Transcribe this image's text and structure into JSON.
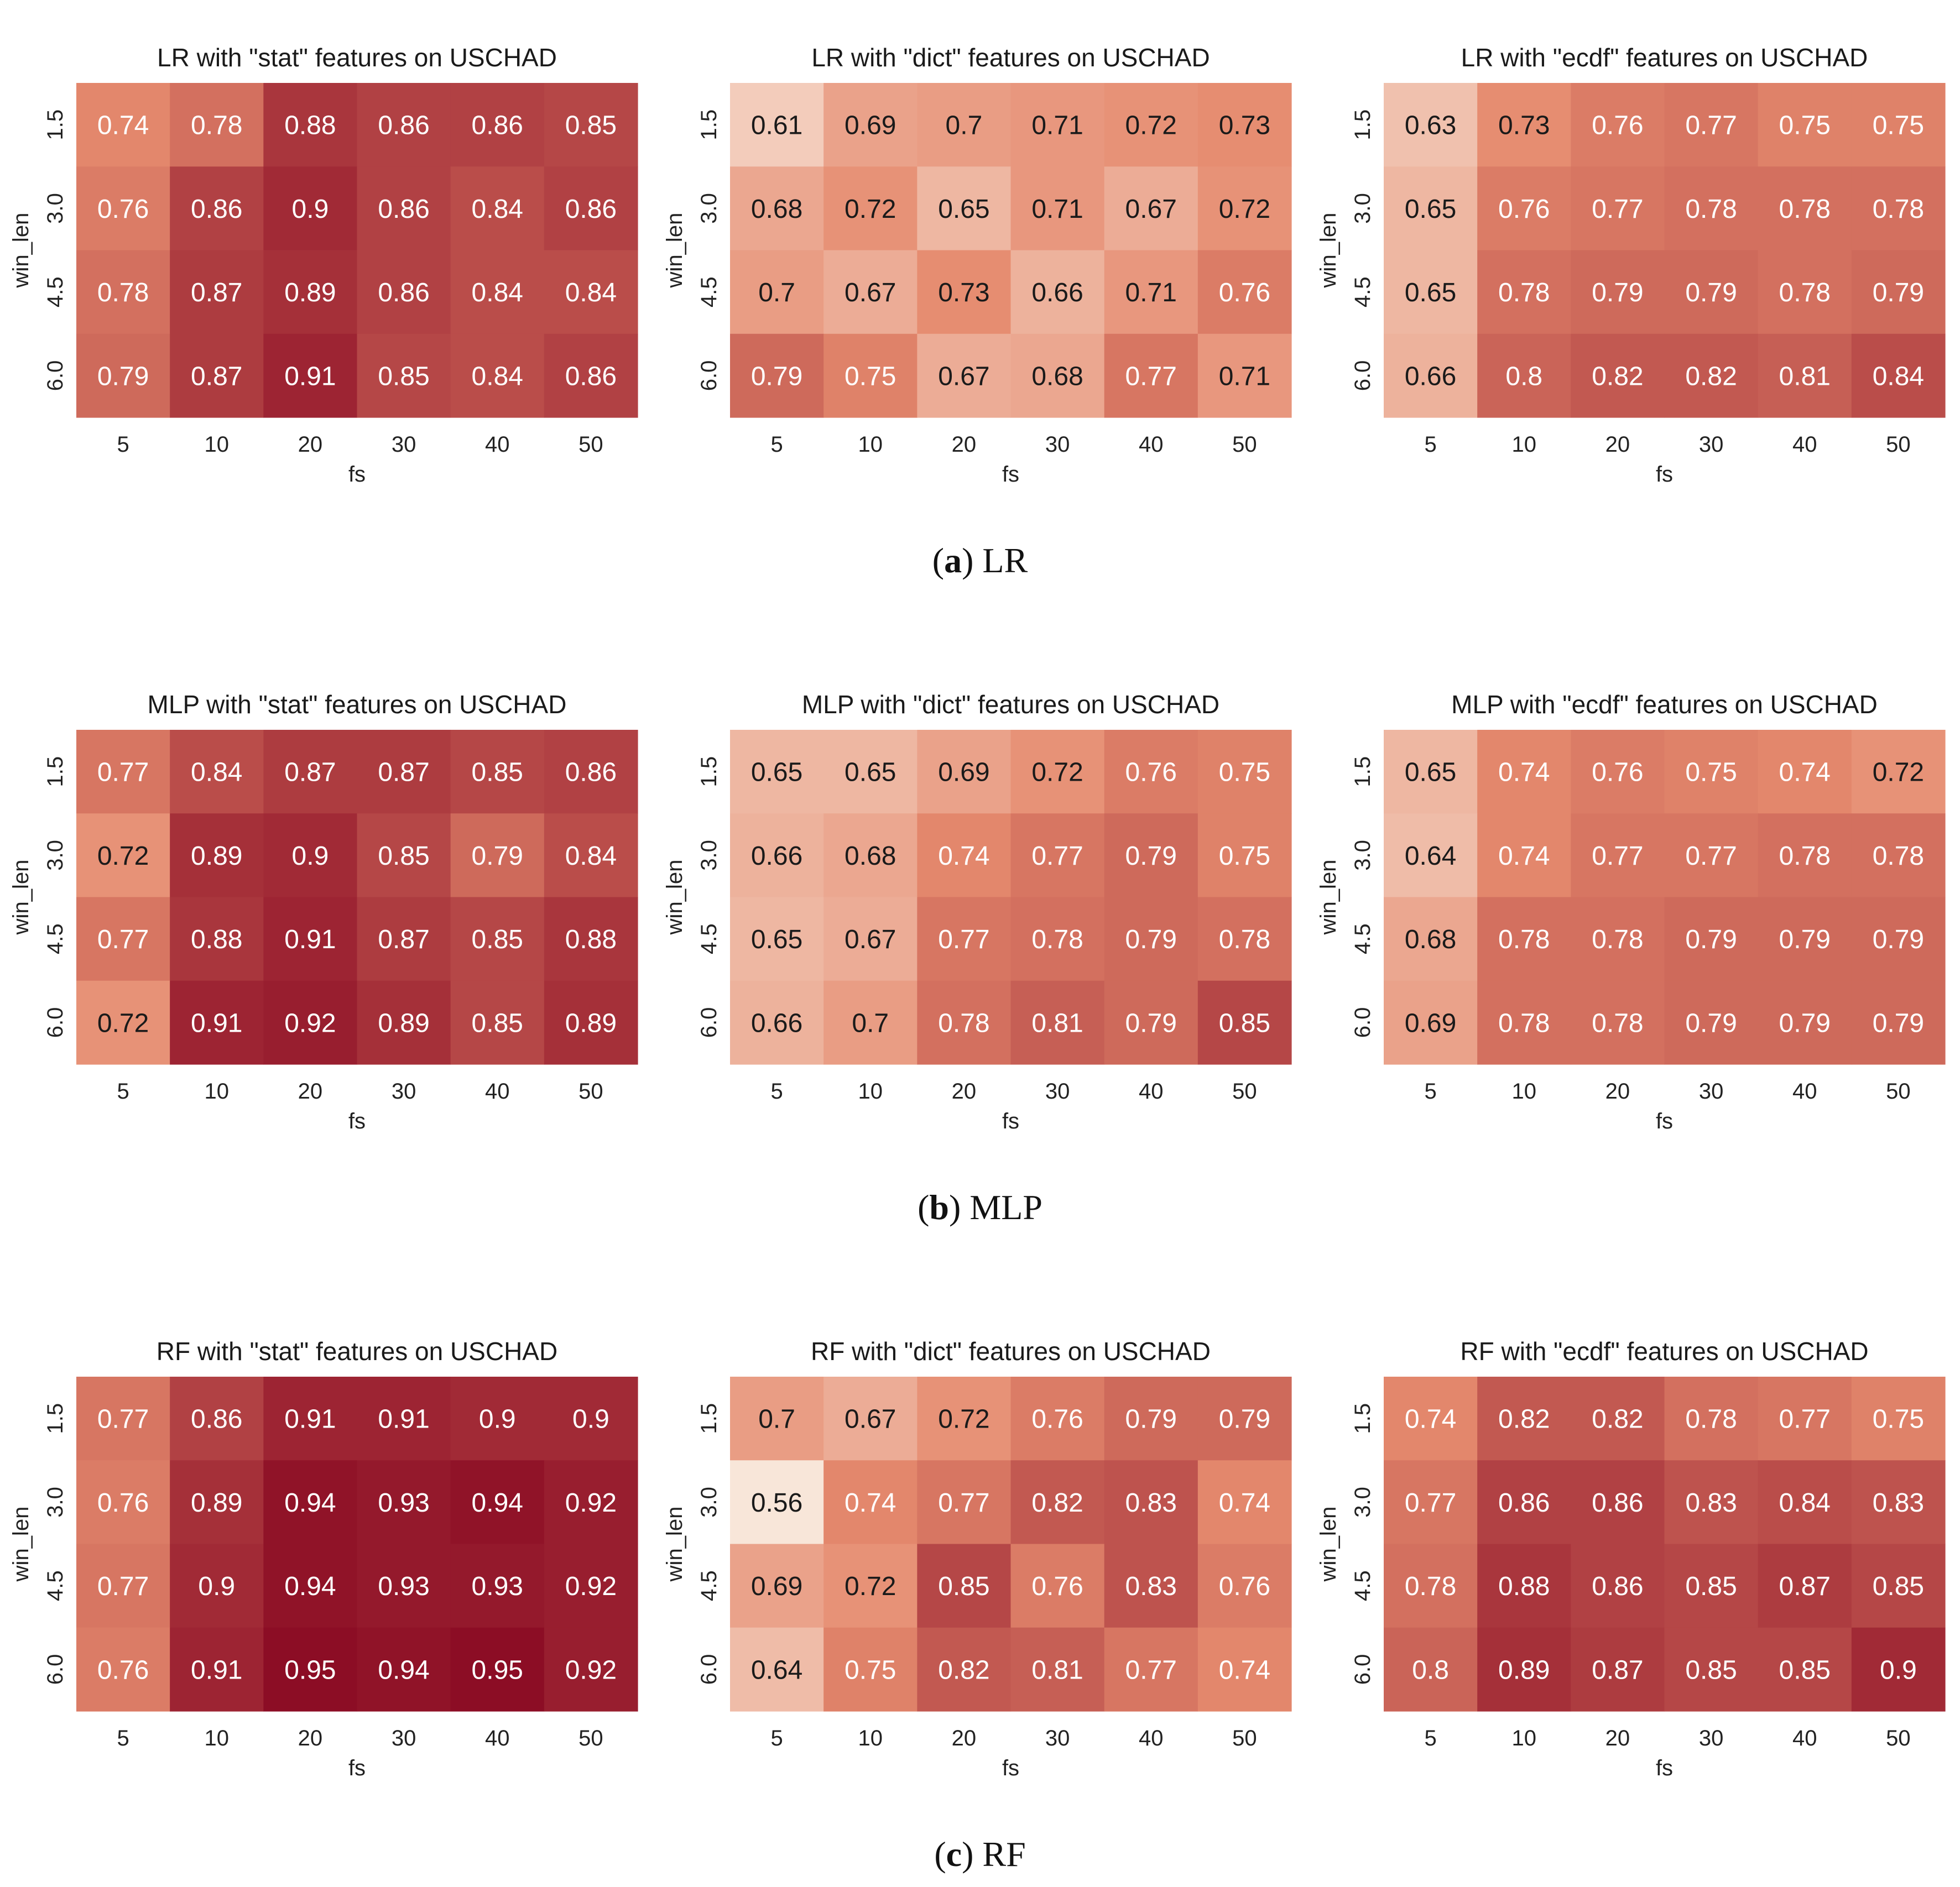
{
  "color_scale": {
    "min_value": 0.56,
    "max_value": 0.95,
    "low_color": "#f8e6d9",
    "mid_color": "#e58a6e",
    "high_color": "#8c0d25"
  },
  "captions": [
    {
      "letter": "a",
      "label": "LR"
    },
    {
      "letter": "b",
      "label": "MLP"
    },
    {
      "letter": "c",
      "label": "RF"
    }
  ],
  "chart_data": [
    {
      "type": "heatmap",
      "title": "LR with \"stat\" features on USCHAD",
      "xlabel": "fs",
      "ylabel": "win_len",
      "x_categories": [
        "5",
        "10",
        "20",
        "30",
        "40",
        "50"
      ],
      "y_categories": [
        "1.5",
        "3.0",
        "4.5",
        "6.0"
      ],
      "values": [
        [
          0.74,
          0.78,
          0.88,
          0.86,
          0.86,
          0.85
        ],
        [
          0.76,
          0.86,
          0.9,
          0.86,
          0.84,
          0.86
        ],
        [
          0.78,
          0.87,
          0.89,
          0.86,
          0.84,
          0.84
        ],
        [
          0.79,
          0.87,
          0.91,
          0.85,
          0.84,
          0.86
        ]
      ]
    },
    {
      "type": "heatmap",
      "title": "LR with \"dict\" features on USCHAD",
      "xlabel": "fs",
      "ylabel": "win_len",
      "x_categories": [
        "5",
        "10",
        "20",
        "30",
        "40",
        "50"
      ],
      "y_categories": [
        "1.5",
        "3.0",
        "4.5",
        "6.0"
      ],
      "values": [
        [
          0.61,
          0.69,
          0.7,
          0.71,
          0.72,
          0.73
        ],
        [
          0.68,
          0.72,
          0.65,
          0.71,
          0.67,
          0.72
        ],
        [
          0.7,
          0.67,
          0.73,
          0.66,
          0.71,
          0.76
        ],
        [
          0.79,
          0.75,
          0.67,
          0.68,
          0.77,
          0.71
        ]
      ]
    },
    {
      "type": "heatmap",
      "title": "LR with \"ecdf\" features on USCHAD",
      "xlabel": "fs",
      "ylabel": "win_len",
      "x_categories": [
        "5",
        "10",
        "20",
        "30",
        "40",
        "50"
      ],
      "y_categories": [
        "1.5",
        "3.0",
        "4.5",
        "6.0"
      ],
      "values": [
        [
          0.63,
          0.73,
          0.76,
          0.77,
          0.75,
          0.75
        ],
        [
          0.65,
          0.76,
          0.77,
          0.78,
          0.78,
          0.78
        ],
        [
          0.65,
          0.78,
          0.79,
          0.79,
          0.78,
          0.79
        ],
        [
          0.66,
          0.8,
          0.82,
          0.82,
          0.81,
          0.84
        ]
      ]
    },
    {
      "type": "heatmap",
      "title": "MLP with \"stat\" features on USCHAD",
      "xlabel": "fs",
      "ylabel": "win_len",
      "x_categories": [
        "5",
        "10",
        "20",
        "30",
        "40",
        "50"
      ],
      "y_categories": [
        "1.5",
        "3.0",
        "4.5",
        "6.0"
      ],
      "values": [
        [
          0.77,
          0.84,
          0.87,
          0.87,
          0.85,
          0.86
        ],
        [
          0.72,
          0.89,
          0.9,
          0.85,
          0.79,
          0.84
        ],
        [
          0.77,
          0.88,
          0.91,
          0.87,
          0.85,
          0.88
        ],
        [
          0.72,
          0.91,
          0.92,
          0.89,
          0.85,
          0.89
        ]
      ]
    },
    {
      "type": "heatmap",
      "title": "MLP with \"dict\" features on USCHAD",
      "xlabel": "fs",
      "ylabel": "win_len",
      "x_categories": [
        "5",
        "10",
        "20",
        "30",
        "40",
        "50"
      ],
      "y_categories": [
        "1.5",
        "3.0",
        "4.5",
        "6.0"
      ],
      "values": [
        [
          0.65,
          0.65,
          0.69,
          0.72,
          0.76,
          0.75
        ],
        [
          0.66,
          0.68,
          0.74,
          0.77,
          0.79,
          0.75
        ],
        [
          0.65,
          0.67,
          0.77,
          0.78,
          0.79,
          0.78
        ],
        [
          0.66,
          0.7,
          0.78,
          0.81,
          0.79,
          0.85
        ]
      ]
    },
    {
      "type": "heatmap",
      "title": "MLP with \"ecdf\" features on USCHAD",
      "xlabel": "fs",
      "ylabel": "win_len",
      "x_categories": [
        "5",
        "10",
        "20",
        "30",
        "40",
        "50"
      ],
      "y_categories": [
        "1.5",
        "3.0",
        "4.5",
        "6.0"
      ],
      "values": [
        [
          0.65,
          0.74,
          0.76,
          0.75,
          0.74,
          0.72
        ],
        [
          0.64,
          0.74,
          0.77,
          0.77,
          0.78,
          0.78
        ],
        [
          0.68,
          0.78,
          0.78,
          0.79,
          0.79,
          0.79
        ],
        [
          0.69,
          0.78,
          0.78,
          0.79,
          0.79,
          0.79
        ]
      ]
    },
    {
      "type": "heatmap",
      "title": "RF with \"stat\" features on USCHAD",
      "xlabel": "fs",
      "ylabel": "win_len",
      "x_categories": [
        "5",
        "10",
        "20",
        "30",
        "40",
        "50"
      ],
      "y_categories": [
        "1.5",
        "3.0",
        "4.5",
        "6.0"
      ],
      "values": [
        [
          0.77,
          0.86,
          0.91,
          0.91,
          0.9,
          0.9
        ],
        [
          0.76,
          0.89,
          0.94,
          0.93,
          0.94,
          0.92
        ],
        [
          0.77,
          0.9,
          0.94,
          0.93,
          0.93,
          0.92
        ],
        [
          0.76,
          0.91,
          0.95,
          0.94,
          0.95,
          0.92
        ]
      ]
    },
    {
      "type": "heatmap",
      "title": "RF with \"dict\" features on USCHAD",
      "xlabel": "fs",
      "ylabel": "win_len",
      "x_categories": [
        "5",
        "10",
        "20",
        "30",
        "40",
        "50"
      ],
      "y_categories": [
        "1.5",
        "3.0",
        "4.5",
        "6.0"
      ],
      "values": [
        [
          0.7,
          0.67,
          0.72,
          0.76,
          0.79,
          0.79
        ],
        [
          0.56,
          0.74,
          0.77,
          0.82,
          0.83,
          0.74
        ],
        [
          0.69,
          0.72,
          0.85,
          0.76,
          0.83,
          0.76
        ],
        [
          0.64,
          0.75,
          0.82,
          0.81,
          0.77,
          0.74
        ]
      ]
    },
    {
      "type": "heatmap",
      "title": "RF with \"ecdf\" features on USCHAD",
      "xlabel": "fs",
      "ylabel": "win_len",
      "x_categories": [
        "5",
        "10",
        "20",
        "30",
        "40",
        "50"
      ],
      "y_categories": [
        "1.5",
        "3.0",
        "4.5",
        "6.0"
      ],
      "values": [
        [
          0.74,
          0.82,
          0.82,
          0.78,
          0.77,
          0.75
        ],
        [
          0.77,
          0.86,
          0.86,
          0.83,
          0.84,
          0.83
        ],
        [
          0.78,
          0.88,
          0.86,
          0.85,
          0.87,
          0.85
        ],
        [
          0.8,
          0.89,
          0.87,
          0.85,
          0.85,
          0.9
        ]
      ]
    }
  ]
}
